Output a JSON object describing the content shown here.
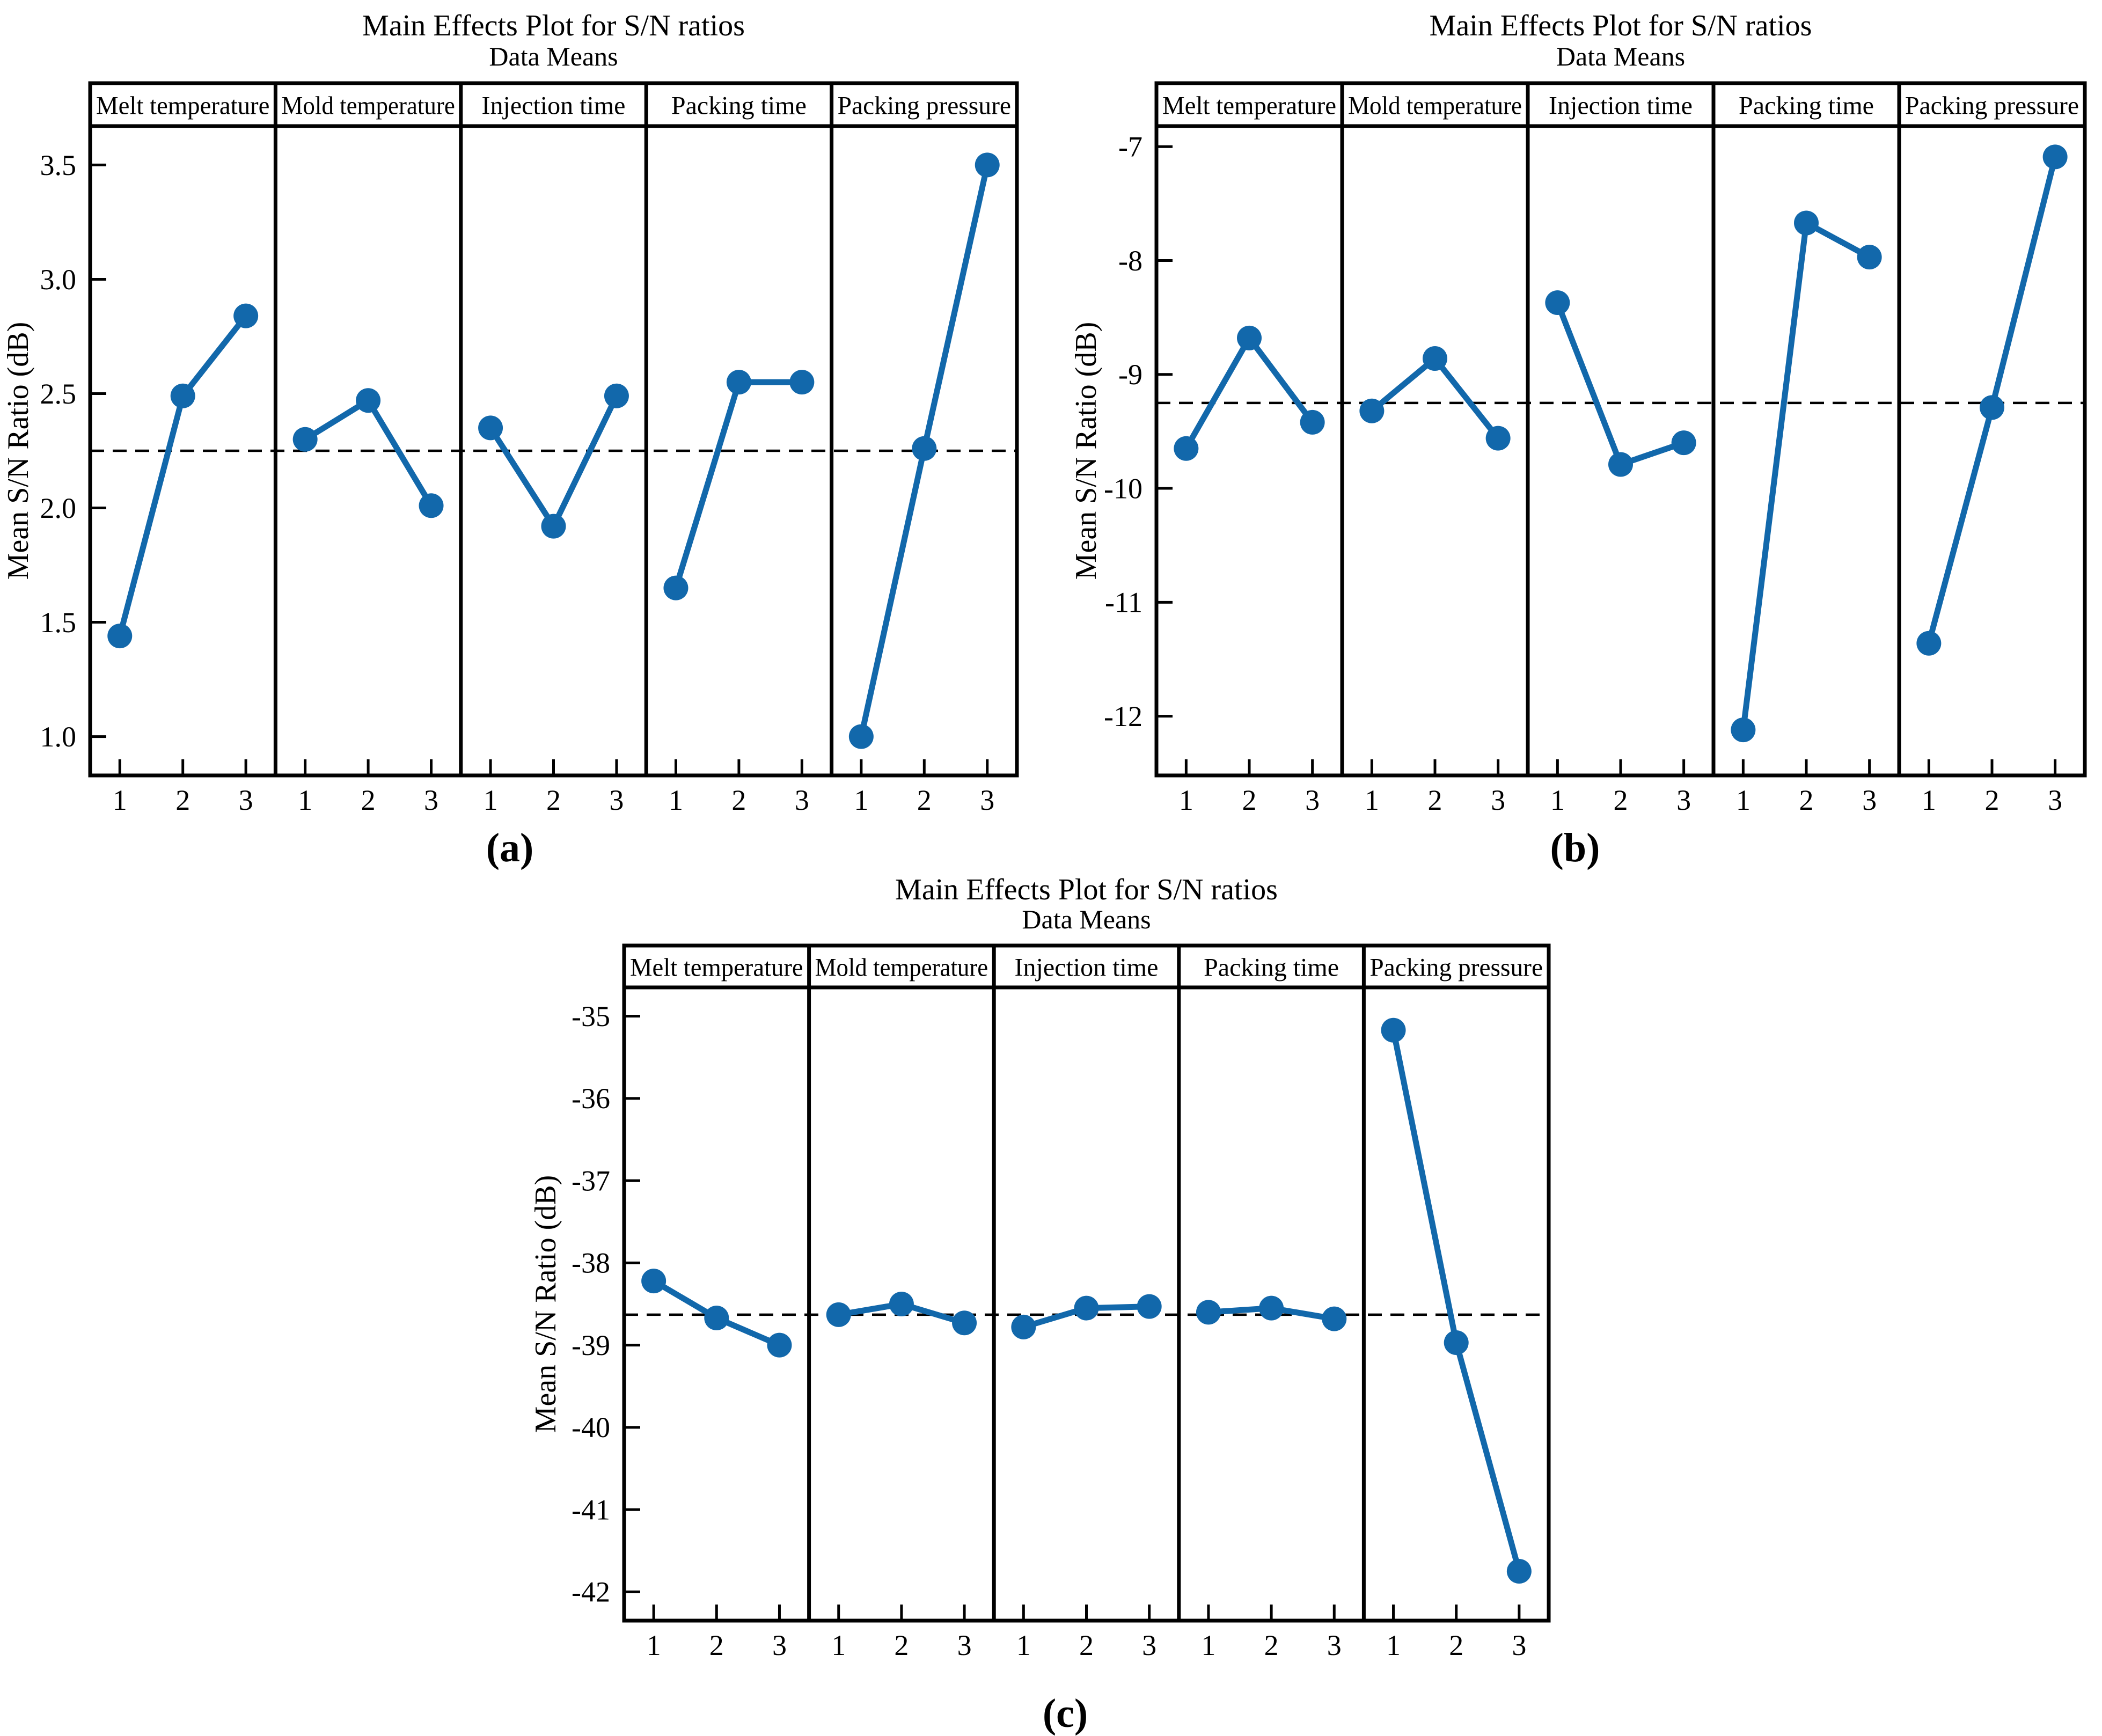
{
  "styles": {
    "background": "#ffffff",
    "accent": "#1268ab",
    "axis_color": "#000000",
    "mean_line_color": "#000000"
  },
  "chart_data": [
    {
      "id": "a",
      "type": "line",
      "title": "Main Effects Plot for S/N ratios",
      "subtitle": "Data Means",
      "ylabel": "Mean S/N Ratio (dB)",
      "panel_label": "(a)",
      "categories": [
        "1",
        "2",
        "3"
      ],
      "legend_position": "none",
      "grid": false,
      "ylim": [
        0.83,
        3.67
      ],
      "yticks": [
        3.5,
        3.0,
        2.5,
        2.0,
        1.5,
        1.0
      ],
      "ytick_decimals": 1,
      "overall_mean": 2.25,
      "series": [
        {
          "name": "Melt temperature",
          "values": [
            1.44,
            2.49,
            2.84
          ]
        },
        {
          "name": "Mold temperature",
          "values": [
            2.3,
            2.47,
            2.01
          ]
        },
        {
          "name": "Injection time",
          "values": [
            2.35,
            1.92,
            2.49
          ]
        },
        {
          "name": "Packing time",
          "values": [
            1.65,
            2.55,
            2.55
          ]
        },
        {
          "name": "Packing pressure",
          "values": [
            1.0,
            2.26,
            3.5
          ]
        }
      ]
    },
    {
      "id": "b",
      "type": "line",
      "title": "Main Effects Plot for S/N ratios",
      "subtitle": "Data Means",
      "ylabel": "Mean S/N Ratio (dB)",
      "panel_label": "(b)",
      "categories": [
        "1",
        "2",
        "3"
      ],
      "legend_position": "none",
      "grid": false,
      "ylim": [
        -12.52,
        -6.82
      ],
      "yticks": [
        -7,
        -8,
        -9,
        -10,
        -11,
        -12
      ],
      "ytick_decimals": 0,
      "overall_mean": -9.25,
      "series": [
        {
          "name": "Melt temperature",
          "values": [
            -9.65,
            -8.68,
            -9.42
          ]
        },
        {
          "name": "Mold temperature",
          "values": [
            -9.32,
            -8.86,
            -9.56
          ]
        },
        {
          "name": "Injection time",
          "values": [
            -8.37,
            -9.79,
            -9.6
          ]
        },
        {
          "name": "Packing time",
          "values": [
            -12.12,
            -7.67,
            -7.97
          ]
        },
        {
          "name": "Packing pressure",
          "values": [
            -11.36,
            -9.29,
            -7.09
          ]
        }
      ]
    },
    {
      "id": "c",
      "type": "line",
      "title": "Main Effects Plot for S/N ratios",
      "subtitle": "Data Means",
      "ylabel": "Mean S/N Ratio (dB)",
      "panel_label": "(c)",
      "categories": [
        "1",
        "2",
        "3"
      ],
      "legend_position": "none",
      "grid": false,
      "ylim": [
        -42.35,
        -34.65
      ],
      "yticks": [
        -35,
        -36,
        -37,
        -38,
        -39,
        -40,
        -41,
        -42
      ],
      "ytick_decimals": 0,
      "overall_mean": -38.63,
      "series": [
        {
          "name": "Melt temperature",
          "values": [
            -38.22,
            -38.67,
            -39.0
          ]
        },
        {
          "name": "Mold temperature",
          "values": [
            -38.63,
            -38.5,
            -38.73
          ]
        },
        {
          "name": "Injection time",
          "values": [
            -38.78,
            -38.55,
            -38.53
          ]
        },
        {
          "name": "Packing time",
          "values": [
            -38.6,
            -38.55,
            -38.68
          ]
        },
        {
          "name": "Packing pressure",
          "values": [
            -35.17,
            -38.97,
            -41.75
          ]
        }
      ]
    }
  ]
}
